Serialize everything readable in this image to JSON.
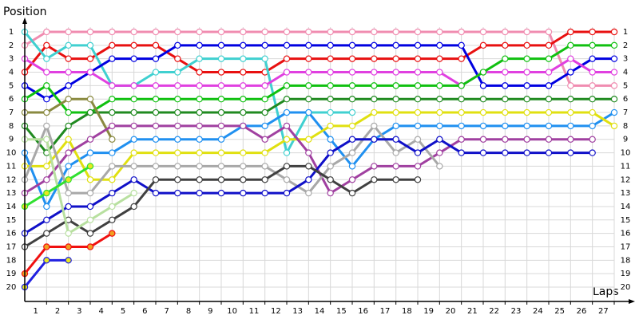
{
  "chart_data": {
    "type": "line",
    "y_label": "Position",
    "x_label": "Laps",
    "x": [
      0,
      1,
      2,
      3,
      4,
      5,
      6,
      7,
      8,
      9,
      10,
      11,
      12,
      13,
      14,
      15,
      16,
      17,
      18,
      19,
      20,
      21,
      22,
      23,
      24,
      25,
      26,
      27
    ],
    "xlim": [
      0,
      27
    ],
    "xticks": [
      1,
      2,
      3,
      4,
      5,
      6,
      7,
      8,
      9,
      10,
      11,
      12,
      13,
      14,
      15,
      16,
      17,
      18,
      19,
      20,
      21,
      22,
      23,
      24,
      25,
      26,
      27
    ],
    "ylim": [
      1,
      20
    ],
    "y_inverted": true,
    "yticks": [
      1,
      2,
      3,
      4,
      5,
      6,
      7,
      8,
      9,
      10,
      11,
      12,
      13,
      14,
      15,
      16,
      17,
      18,
      19,
      20
    ],
    "grid": true,
    "series": [
      {
        "color": "#f08cb0",
        "values": [
          2,
          1,
          1,
          1,
          1,
          1,
          1,
          1,
          1,
          1,
          1,
          1,
          1,
          1,
          1,
          1,
          1,
          1,
          1,
          1,
          1,
          1,
          1,
          1,
          1,
          5,
          5,
          5
        ]
      },
      {
        "color": "#e81010",
        "values": [
          4,
          2,
          3,
          3,
          2,
          2,
          2,
          3,
          4,
          4,
          4,
          4,
          3,
          3,
          3,
          3,
          3,
          3,
          3,
          3,
          3,
          2,
          2,
          2,
          2,
          1,
          1,
          1
        ]
      },
      {
        "color": "#40d0d0",
        "values": [
          1,
          3,
          2,
          2,
          5,
          5,
          4,
          4,
          3,
          3,
          3,
          3,
          10,
          7,
          7,
          7,
          null,
          null,
          null,
          null,
          null,
          null,
          null,
          null,
          null,
          null,
          null,
          null
        ]
      },
      {
        "color": "#0000e0",
        "values": [
          5,
          6,
          5,
          4,
          3,
          3,
          3,
          2,
          2,
          2,
          2,
          2,
          2,
          2,
          2,
          2,
          2,
          2,
          2,
          2,
          2,
          5,
          5,
          5,
          5,
          4,
          3,
          3
        ]
      },
      {
        "color": "#e040e0",
        "values": [
          3,
          4,
          4,
          4,
          5,
          5,
          5,
          5,
          5,
          5,
          5,
          5,
          4,
          4,
          4,
          4,
          4,
          4,
          4,
          4,
          5,
          4,
          4,
          4,
          4,
          3,
          4,
          4
        ]
      },
      {
        "color": "#10c010",
        "values": [
          6,
          5,
          7,
          7,
          6,
          6,
          6,
          6,
          6,
          6,
          6,
          6,
          5,
          5,
          5,
          5,
          5,
          5,
          5,
          5,
          5,
          4,
          3,
          3,
          3,
          2,
          2,
          2
        ]
      },
      {
        "color": "#208a20",
        "values": [
          8,
          10,
          8,
          7,
          7,
          7,
          7,
          7,
          7,
          7,
          7,
          7,
          6,
          6,
          6,
          6,
          6,
          6,
          6,
          6,
          6,
          6,
          6,
          6,
          6,
          6,
          6,
          6
        ]
      },
      {
        "color": "#8a8a40",
        "values": [
          7,
          7,
          6,
          6,
          9,
          null,
          null,
          null,
          null,
          null,
          null,
          null,
          null,
          null,
          null,
          null,
          null,
          null,
          null,
          null,
          null,
          null,
          null,
          null,
          null,
          null,
          null,
          null
        ]
      },
      {
        "color": "#2090f0",
        "values": [
          10,
          14,
          11,
          10,
          10,
          9,
          9,
          9,
          9,
          9,
          8,
          8,
          7,
          7,
          9,
          11,
          9,
          8,
          8,
          8,
          8,
          8,
          8,
          8,
          8,
          8,
          8,
          7
        ]
      },
      {
        "color": "#e0e010",
        "values": [
          11,
          11,
          9,
          12,
          12,
          10,
          10,
          10,
          10,
          10,
          10,
          10,
          9,
          9,
          8,
          8,
          7,
          7,
          7,
          7,
          7,
          7,
          7,
          7,
          7,
          7,
          7,
          8
        ]
      },
      {
        "color": "#a040a0",
        "values": [
          13,
          12,
          10,
          9,
          8,
          8,
          8,
          8,
          8,
          8,
          8,
          9,
          8,
          10,
          13,
          12,
          11,
          11,
          11,
          10,
          9,
          9,
          9,
          9,
          9,
          9,
          9,
          null
        ]
      },
      {
        "color": "#a8a8a8",
        "values": [
          12,
          8,
          13,
          13,
          11,
          11,
          11,
          11,
          11,
          11,
          11,
          11,
          12,
          13,
          11,
          10,
          8,
          10,
          9,
          11,
          null,
          null,
          null,
          null,
          null,
          null,
          null,
          null
        ]
      },
      {
        "color": "#1010c8",
        "values": [
          16,
          15,
          14,
          14,
          13,
          12,
          13,
          13,
          13,
          13,
          13,
          13,
          13,
          12,
          10,
          9,
          9,
          9,
          10,
          9,
          10,
          10,
          10,
          10,
          10,
          10,
          10,
          null
        ]
      },
      {
        "color": "#404040",
        "values": [
          17,
          16,
          15,
          16,
          15,
          14,
          12,
          12,
          12,
          12,
          12,
          12,
          11,
          11,
          12,
          13,
          12,
          12,
          12,
          null,
          null,
          null,
          null,
          null,
          null,
          null,
          null,
          null
        ]
      },
      {
        "color": "#b8e0a0",
        "values": [
          9,
          9,
          16,
          15,
          14,
          13,
          null,
          null,
          null,
          null,
          null,
          null,
          null,
          null,
          null,
          null,
          null,
          null,
          null,
          null,
          null,
          null,
          null,
          null,
          null,
          null,
          null,
          null
        ]
      },
      {
        "color": "#30e030",
        "marker_fill": "#e8e820",
        "values": [
          14,
          13,
          12,
          11,
          null,
          null,
          null,
          null,
          null,
          null,
          null,
          null,
          null,
          null,
          null,
          null,
          null,
          null,
          null,
          null,
          null,
          null,
          null,
          null,
          null,
          null,
          null,
          null
        ]
      },
      {
        "color": "#f01010",
        "marker_fill": "#f0a020",
        "values": [
          19,
          17,
          17,
          17,
          16,
          null,
          null,
          null,
          null,
          null,
          null,
          null,
          null,
          null,
          null,
          null,
          null,
          null,
          null,
          null,
          null,
          null,
          null,
          null,
          null,
          null,
          null,
          null
        ]
      },
      {
        "color": "#2020e0",
        "marker_fill": "#e8e820",
        "values": [
          20,
          18,
          18,
          null,
          null,
          null,
          null,
          null,
          null,
          null,
          null,
          null,
          null,
          null,
          null,
          null,
          null,
          null,
          null,
          null,
          null,
          null,
          null,
          null,
          null,
          null,
          null,
          null
        ]
      }
    ]
  }
}
